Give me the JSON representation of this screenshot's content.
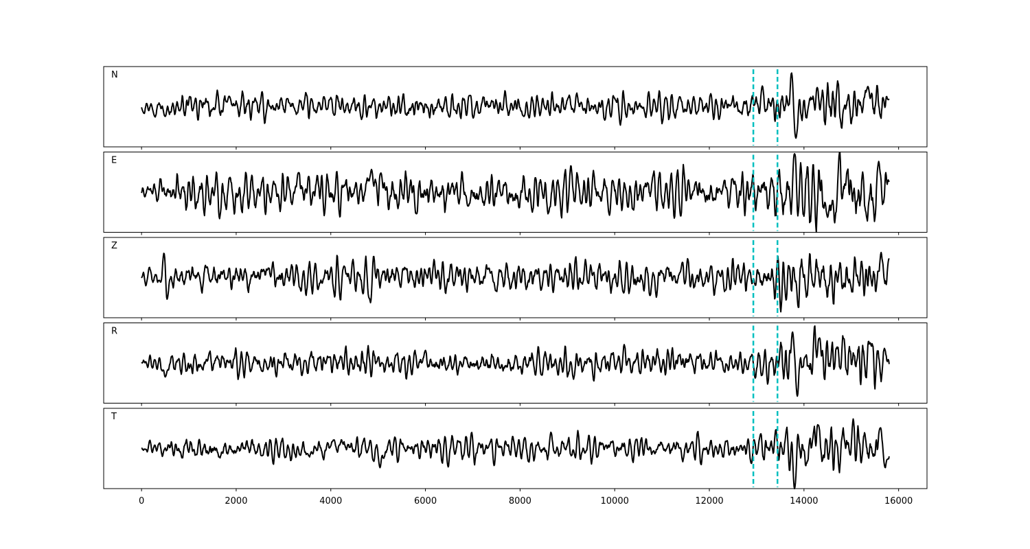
{
  "chart_data": {
    "type": "line",
    "title": "",
    "xlabel": "",
    "ylabel": "",
    "xlim": [
      -800,
      16600
    ],
    "x_ticks": [
      0,
      2000,
      4000,
      6000,
      8000,
      10000,
      12000,
      14000,
      16000
    ],
    "x_tick_labels": [
      "0",
      "2000",
      "4000",
      "6000",
      "8000",
      "10000",
      "12000",
      "14000",
      "16000"
    ],
    "grid": false,
    "legend": "none",
    "markers": {
      "color": "#00bfbf",
      "style": "dashed",
      "x": [
        12930,
        13440
      ]
    },
    "trace_color": "#000000",
    "x_end": 15800,
    "panels": [
      {
        "label": "N",
        "ylim": [
          -1.15,
          1.15
        ],
        "noise_level": 0.24,
        "anchors": [
          {
            "x": 500,
            "y": -0.28
          },
          {
            "x": 1850,
            "y": 0.3
          },
          {
            "x": 6930,
            "y": 0.32
          },
          {
            "x": 13740,
            "y": 1.0
          },
          {
            "x": 13830,
            "y": -0.9
          },
          {
            "x": 14280,
            "y": 0.55
          },
          {
            "x": 15350,
            "y": 0.58
          },
          {
            "x": 15780,
            "y": 0.2
          }
        ],
        "tail_amplitude": 0.45
      },
      {
        "label": "E",
        "ylim": [
          -1.15,
          1.15
        ],
        "noise_level": 0.36,
        "anchors": [
          {
            "x": 4860,
            "y": 0.65
          },
          {
            "x": 5060,
            "y": 0.55
          },
          {
            "x": 6900,
            "y": -0.4
          },
          {
            "x": 13800,
            "y": 1.1
          },
          {
            "x": 14500,
            "y": -0.72
          },
          {
            "x": 15580,
            "y": 0.88
          },
          {
            "x": 15780,
            "y": 0.35
          }
        ],
        "tail_amplitude": 0.6
      },
      {
        "label": "Z",
        "ylim": [
          -1.15,
          1.15
        ],
        "noise_level": 0.32,
        "anchors": [
          {
            "x": 500,
            "y": 1.1
          },
          {
            "x": 540,
            "y": -0.62
          },
          {
            "x": 4890,
            "y": 0.92
          },
          {
            "x": 4840,
            "y": -0.72
          },
          {
            "x": 15630,
            "y": 0.72
          },
          {
            "x": 15800,
            "y": 0.55
          }
        ],
        "tail_amplitude": 0.5
      },
      {
        "label": "R",
        "ylim": [
          -1.15,
          1.15
        ],
        "noise_level": 0.24,
        "anchors": [
          {
            "x": 500,
            "y": -0.4
          },
          {
            "x": 13760,
            "y": 0.9
          },
          {
            "x": 13860,
            "y": -0.95
          },
          {
            "x": 14330,
            "y": 0.72
          },
          {
            "x": 15400,
            "y": 0.58
          },
          {
            "x": 15780,
            "y": 0.1
          }
        ],
        "tail_amplitude": 0.5
      },
      {
        "label": "T",
        "ylim": [
          -1.15,
          1.15
        ],
        "noise_level": 0.24,
        "anchors": [
          {
            "x": 5040,
            "y": -0.55
          },
          {
            "x": 13800,
            "y": -1.15
          },
          {
            "x": 14290,
            "y": 0.68
          },
          {
            "x": 15620,
            "y": 0.6
          },
          {
            "x": 15720,
            "y": -0.6
          },
          {
            "x": 15780,
            "y": -0.3
          }
        ],
        "tail_amplitude": 0.45
      }
    ]
  }
}
